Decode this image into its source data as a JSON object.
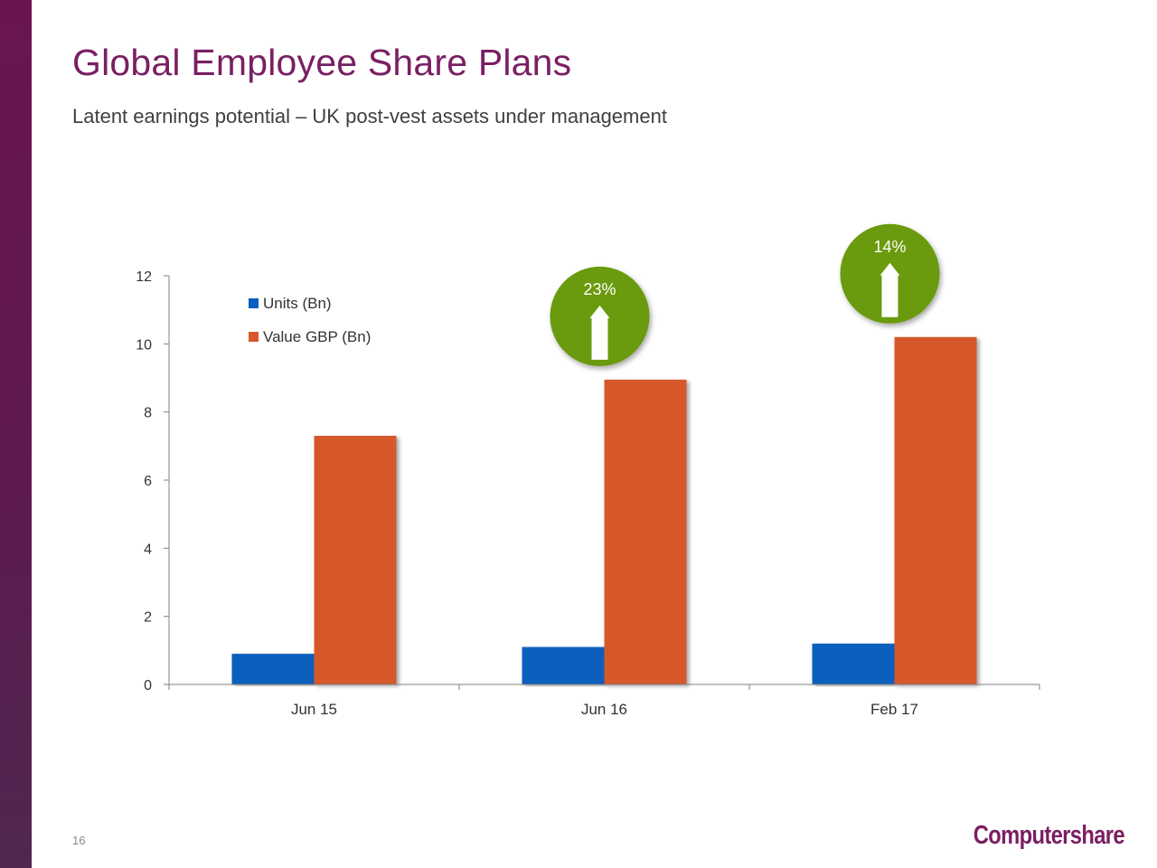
{
  "page": {
    "title": "Global Employee Share Plans",
    "subtitle": "Latent earnings potential – UK post-vest assets under management",
    "page_number": "16",
    "logo_text": "Computershare"
  },
  "colors": {
    "brand": "#7a1f63",
    "units": "#0a5ebe",
    "value": "#d6582a",
    "badge": "#6b9a0e"
  },
  "chart_data": {
    "type": "bar",
    "categories": [
      "Jun 15",
      "Jun 16",
      "Feb 17"
    ],
    "series": [
      {
        "name": "Units (Bn)",
        "values": [
          0.9,
          1.1,
          1.2
        ]
      },
      {
        "name": "Value GBP (Bn)",
        "values": [
          7.3,
          8.95,
          10.2
        ]
      }
    ],
    "ylim": [
      0,
      12
    ],
    "yticks": [
      0,
      2,
      4,
      6,
      8,
      10,
      12
    ],
    "legend": "top-left",
    "grid": false,
    "annotations": [
      {
        "label": "23%",
        "category": "Jun 16",
        "icon": "up-arrow-icon"
      },
      {
        "label": "14%",
        "category": "Feb 17",
        "icon": "up-arrow-icon"
      }
    ]
  }
}
